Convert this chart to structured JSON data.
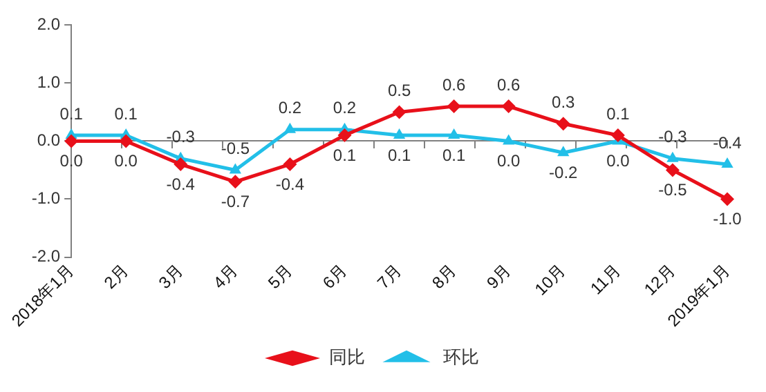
{
  "chart_data": {
    "type": "line",
    "categories": [
      "2018年1月",
      "2月",
      "3月",
      "4月",
      "5月",
      "6月",
      "7月",
      "8月",
      "9月",
      "10月",
      "11月",
      "12月",
      "2019年1月"
    ],
    "series": [
      {
        "name": "同比",
        "color": "#e8101a",
        "marker": "diamond",
        "values": [
          0.0,
          0.0,
          -0.4,
          -0.7,
          -0.4,
          0.1,
          0.5,
          0.6,
          0.6,
          0.3,
          0.1,
          -0.5,
          -1.0
        ],
        "value_labels": [
          "0.0",
          "0.0",
          "-0.4",
          "-0.7",
          "-0.4",
          "0.1",
          "0.5",
          "0.6",
          "0.6",
          "0.3",
          "0.1",
          "-0.5",
          "-1.0"
        ]
      },
      {
        "name": "环比",
        "color": "#22bfe8",
        "marker": "triangle",
        "values": [
          0.1,
          0.1,
          -0.3,
          -0.5,
          0.2,
          0.2,
          0.1,
          0.1,
          0.0,
          -0.2,
          0.0,
          -0.3,
          -0.4
        ],
        "value_labels": [
          "0.1",
          "0.1",
          "-0.3",
          "-0.5",
          "0.2",
          "0.2",
          "0.1",
          "0.1",
          "0.0",
          "-0.2",
          "0.0",
          "-0.3",
          "-0.4"
        ]
      }
    ],
    "ylim": [
      -2.0,
      2.0
    ],
    "yticks": [
      {
        "value": -2,
        "label": "-2.0"
      },
      {
        "value": -1,
        "label": "-1.0"
      },
      {
        "value": 0,
        "label": "0.0"
      },
      {
        "value": 1,
        "label": "1.0"
      },
      {
        "value": 2,
        "label": "2.0"
      }
    ],
    "legend": "bottom",
    "line_style": "solid"
  }
}
